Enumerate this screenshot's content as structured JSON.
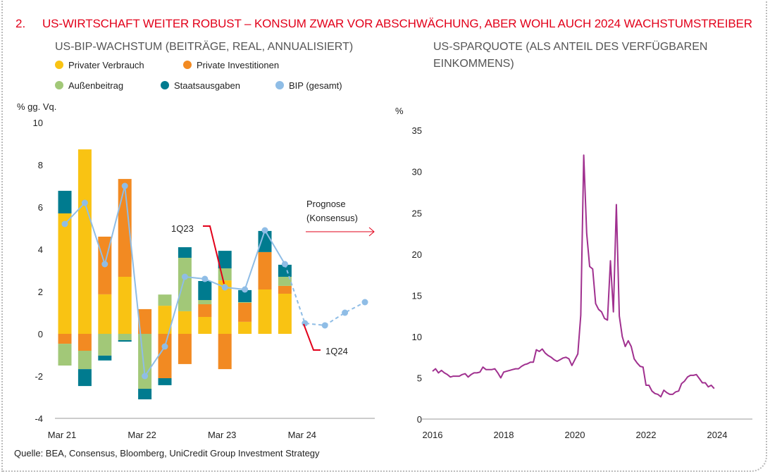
{
  "title": {
    "number": "2.",
    "text": "US-WIRTSCHAFT WEITER ROBUST – KONSUM ZWAR VOR ABSCHWÄCHUNG, ABER WOHL AUCH 2024 WACHSTUMSTREIBER"
  },
  "source": "Quelle: BEA, Consensus, Bloomberg, UniCredit Group Investment Strategy",
  "colors": {
    "title": "#e2001a",
    "pv": "#f9c313",
    "pi": "#f28a22",
    "ab": "#a2c878",
    "sa": "#007b8f",
    "bip": "#8fbde6",
    "saving": "#a0308f",
    "annot": "#e2001a"
  },
  "chart_data": [
    {
      "type": "bar",
      "title": "US-BIP-WACHSTUM (BEITRÄGE, REAL, ANNUALISIERT)",
      "ylabel": "% gg. Vq.",
      "ylim": [
        -4,
        10
      ],
      "yticks": [
        "-4",
        "-2",
        "0",
        "2",
        "4",
        "6",
        "8",
        "10"
      ],
      "xticks": [
        {
          "label": "Mar 21",
          "index": 0
        },
        {
          "label": "Mar 22",
          "index": 4
        },
        {
          "label": "Mar 23",
          "index": 8
        },
        {
          "label": "Mar 24",
          "index": 12
        }
      ],
      "legend": [
        "Privater Verbrauch",
        "Private Investitionen",
        "Außenbeitrag",
        "Staatsausgaben",
        "BIP (gesamt)"
      ],
      "series": [
        {
          "name": "Privater Verbrauch",
          "values": [
            5.7,
            8.73,
            1.87,
            2.7,
            0,
            1.33,
            1.07,
            0.8,
            2.53,
            0.57,
            2.1,
            1.9
          ]
        },
        {
          "name": "Private Investitionen",
          "values": [
            -0.47,
            -0.8,
            2.73,
            4.63,
            1.17,
            -2.1,
            -1.43,
            0.6,
            -1.67,
            0.9,
            1.77,
            0.37
          ]
        },
        {
          "name": "Außenbeitrag",
          "values": [
            -1.03,
            -0.87,
            -1.03,
            -0.3,
            -2.6,
            0.53,
            2.53,
            0.2,
            0.57,
            0.03,
            0,
            0.43
          ]
        },
        {
          "name": "Staatsausgaben",
          "values": [
            1.07,
            -0.8,
            -0.23,
            -0.07,
            -0.5,
            -0.33,
            0.5,
            0.9,
            0.83,
            0.57,
            1.0,
            0.57
          ]
        }
      ],
      "bip": {
        "name": "BIP (gesamt)",
        "actual": [
          5.2,
          6.2,
          3.3,
          7.0,
          -2.0,
          -0.6,
          2.7,
          2.6,
          2.2,
          2.1,
          4.9,
          3.3
        ],
        "forecast": [
          0.5,
          0.4,
          1.0,
          1.5
        ]
      },
      "annotations": {
        "q1_23": "1Q23",
        "q1_24": "1Q24",
        "prognose_1": "Prognose",
        "prognose_2": "(Konsensus)"
      }
    },
    {
      "type": "line",
      "title_1": "US-SPARQUOTE (ALS ANTEIL DES VERFÜGBAREN",
      "title_2": "EINKOMMENS)",
      "ylabel": "%",
      "ylim": [
        0,
        35
      ],
      "yticks": [
        "0",
        "5",
        "10",
        "15",
        "20",
        "25",
        "30",
        "35"
      ],
      "xticks": [
        "2016",
        "2018",
        "2020",
        "2022",
        "2024"
      ],
      "x_start": "2016-01",
      "frequency": "monthly",
      "values": [
        5.8,
        6.1,
        5.6,
        5.9,
        5.6,
        5.4,
        5.1,
        5.2,
        5.2,
        5.2,
        5.4,
        5.5,
        5.1,
        5.4,
        5.6,
        5.6,
        5.7,
        6.3,
        6.0,
        6.0,
        6.0,
        6.1,
        5.6,
        5.0,
        5.7,
        5.8,
        5.9,
        6.0,
        6.1,
        6.1,
        6.4,
        6.6,
        6.7,
        6.9,
        6.9,
        8.4,
        8.2,
        8.5,
        8.0,
        7.7,
        7.5,
        7.2,
        7.0,
        7.2,
        7.4,
        7.5,
        7.3,
        6.5,
        7.2,
        7.9,
        12.6,
        32.0,
        22.5,
        18.5,
        18.2,
        14.0,
        13.3,
        13.0,
        12.2,
        12.0,
        19.2,
        13.0,
        26.0,
        12.5,
        10.0,
        8.8,
        9.5,
        8.8,
        7.3,
        6.8,
        6.4,
        6.3,
        4.1,
        4.1,
        3.4,
        3.1,
        3.0,
        2.7,
        3.5,
        3.2,
        3.0,
        3.0,
        3.3,
        3.4,
        4.3,
        4.6,
        5.1,
        5.3,
        5.3,
        5.4,
        4.9,
        4.4,
        4.4,
        3.9,
        4.1,
        3.7
      ]
    }
  ]
}
